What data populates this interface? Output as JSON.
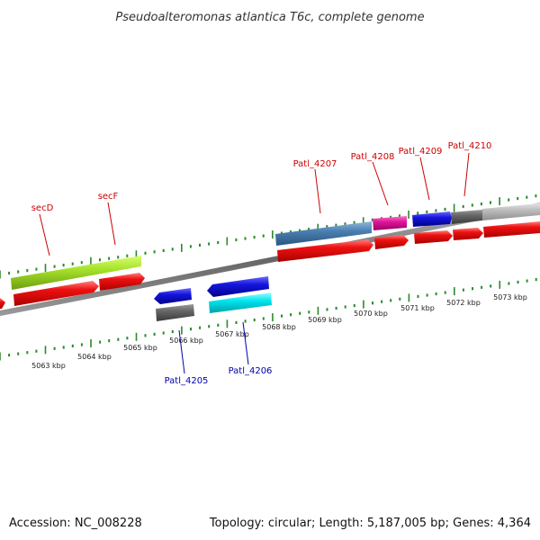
{
  "title": "Pseudoalteromonas atlantica T6c, complete genome",
  "footer": {
    "accession": "Accession: NC_008228",
    "summary": "Topology: circular; Length: 5,187,005 bp; Genes: 4,364"
  },
  "colors": {
    "backbone": "#777777",
    "tick": "#2a8a2a",
    "forward_label": "#cc0000",
    "reverse_label": "#0000aa",
    "cds": "#ee1111",
    "lime": "#a6e22a",
    "blue": "#1515dd",
    "steelblue": "#4a7fb0",
    "magenta": "#e0169a",
    "darkgray": "#666666",
    "lightgray": "#bbbbbb",
    "cyan": "#00e5ee"
  },
  "scale_labels": [
    {
      "text": "5063 kbp",
      "pos_kbp": 5063
    },
    {
      "text": "5064 kbp",
      "pos_kbp": 5064
    },
    {
      "text": "5065 kbp",
      "pos_kbp": 5065
    },
    {
      "text": "5066 kbp",
      "pos_kbp": 5066
    },
    {
      "text": "5067 kbp",
      "pos_kbp": 5067
    },
    {
      "text": "5068 kbp",
      "pos_kbp": 5068
    },
    {
      "text": "5069 kbp",
      "pos_kbp": 5069
    },
    {
      "text": "5070 kbp",
      "pos_kbp": 5070
    },
    {
      "text": "5071 kbp",
      "pos_kbp": 5071
    },
    {
      "text": "5072 kbp",
      "pos_kbp": 5072
    },
    {
      "text": "5073 kbp",
      "pos_kbp": 5073
    }
  ],
  "gene_labels": [
    {
      "text": "secD",
      "strand": "forward"
    },
    {
      "text": "secF",
      "strand": "forward"
    },
    {
      "text": "Patl_4207",
      "strand": "forward"
    },
    {
      "text": "Patl_4208",
      "strand": "forward"
    },
    {
      "text": "Patl_4209",
      "strand": "forward"
    },
    {
      "text": "Patl_4210",
      "strand": "forward"
    },
    {
      "text": "Patl_4205",
      "strand": "reverse"
    },
    {
      "text": "Patl_4206",
      "strand": "reverse"
    }
  ]
}
